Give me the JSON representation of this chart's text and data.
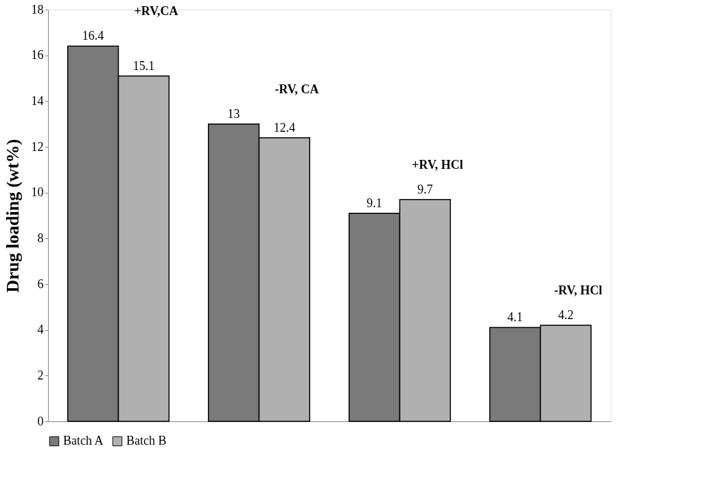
{
  "chart_data": {
    "type": "bar",
    "ylabel": "Drug loading (wt%)",
    "categories": [
      null,
      null,
      null,
      null
    ],
    "series": [
      {
        "name": "Batch A",
        "color": "#7a7a7a",
        "values": [
          16.4,
          13,
          9.1,
          4.1
        ]
      },
      {
        "name": "Batch B",
        "color": "#b0b0b0",
        "values": [
          15.1,
          12.4,
          9.7,
          4.2
        ]
      }
    ],
    "ylim": [
      0,
      18
    ],
    "yticks": [
      0,
      2,
      4,
      6,
      8,
      10,
      12,
      14,
      16,
      18
    ],
    "grid": false,
    "legend": "bottom",
    "data_labels": true,
    "annotations": [
      "+RV,CA",
      "-RV, CA",
      "+RV, HCl",
      "-RV, HCl"
    ]
  }
}
